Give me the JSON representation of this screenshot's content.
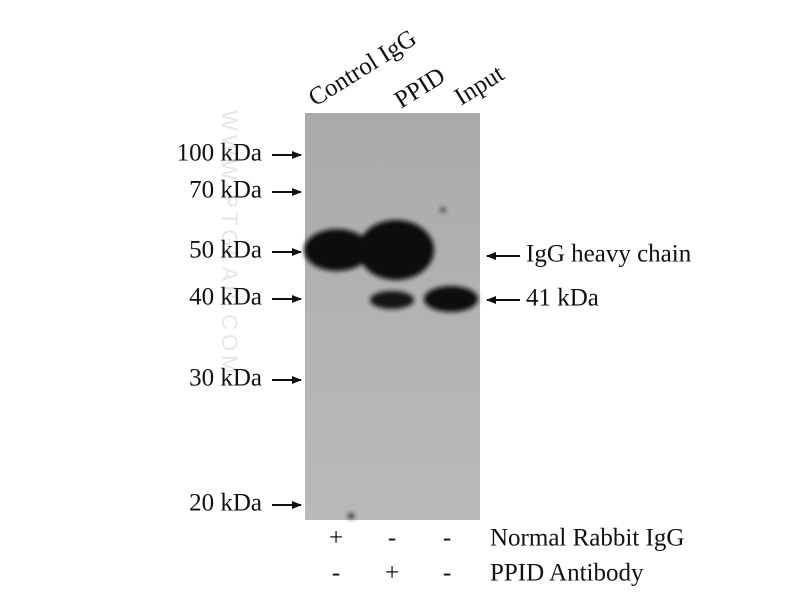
{
  "lanes": [
    "Control IgG",
    "PPID",
    "Input"
  ],
  "markers": [
    "100 kDa",
    "70 kDa",
    "50 kDa",
    "40 kDa",
    "30 kDa",
    "20 kDa"
  ],
  "annotations": [
    "IgG heavy chain",
    "41 kDa"
  ],
  "conditions": [
    {
      "label": "Normal Rabbit IgG",
      "signs": [
        "+",
        "-",
        "-"
      ]
    },
    {
      "label": "PPID Antibody",
      "signs": [
        "-",
        "+",
        "-"
      ]
    }
  ],
  "watermark": "WWW.PTGLAB.COM"
}
